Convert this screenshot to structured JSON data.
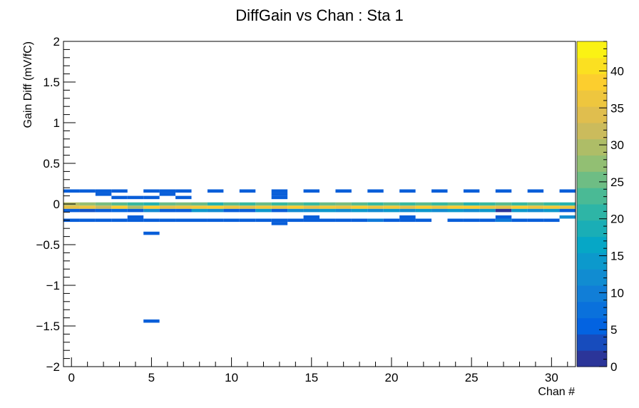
{
  "chart_data": {
    "type": "heatmap",
    "title": "DiffGain vs Chan : Sta 1",
    "xlabel": "Chan #",
    "ylabel": "Gain Diff (mV/fC)",
    "xlim": [
      -0.5,
      31.5
    ],
    "ylim": [
      -2,
      2
    ],
    "zlim": [
      0,
      44
    ],
    "x_tick_labels": [
      "0",
      "5",
      "10",
      "15",
      "20",
      "25",
      "30"
    ],
    "y_tick_labels": [
      "2",
      "1.5",
      "1",
      "0.5",
      "0",
      "−0.5",
      "−1",
      "−1.5",
      "−2"
    ],
    "colorbar_tick_labels": [
      "0",
      "5",
      "10",
      "15",
      "20",
      "25",
      "30",
      "35",
      "40"
    ],
    "bin_width_y": 0.04,
    "colormap": [
      "#352a87",
      "#0363e1",
      "#1485d4",
      "#06a7c6",
      "#38b99e",
      "#92bf73",
      "#d9ba56",
      "#fcce2e",
      "#f9fb0e"
    ],
    "cells": [
      {
        "ch": 0,
        "y": 0.16,
        "z": 5
      },
      {
        "ch": 0,
        "y": 0.0,
        "z": 30
      },
      {
        "ch": 0,
        "y": -0.04,
        "z": 35
      },
      {
        "ch": 0,
        "y": -0.08,
        "z": 5
      },
      {
        "ch": 0,
        "y": -0.2,
        "z": 5
      },
      {
        "ch": 1,
        "y": 0.16,
        "z": 5
      },
      {
        "ch": 1,
        "y": 0.0,
        "z": 28
      },
      {
        "ch": 1,
        "y": -0.04,
        "z": 36
      },
      {
        "ch": 1,
        "y": -0.08,
        "z": 4
      },
      {
        "ch": 1,
        "y": -0.2,
        "z": 5
      },
      {
        "ch": 2,
        "y": 0.12,
        "z": 5
      },
      {
        "ch": 2,
        "y": 0.16,
        "z": 5
      },
      {
        "ch": 2,
        "y": 0.0,
        "z": 26
      },
      {
        "ch": 2,
        "y": -0.04,
        "z": 32
      },
      {
        "ch": 2,
        "y": -0.08,
        "z": 5
      },
      {
        "ch": 2,
        "y": -0.2,
        "z": 5
      },
      {
        "ch": 3,
        "y": 0.08,
        "z": 5
      },
      {
        "ch": 3,
        "y": 0.16,
        "z": 5
      },
      {
        "ch": 3,
        "y": 0.0,
        "z": 24
      },
      {
        "ch": 3,
        "y": -0.04,
        "z": 38
      },
      {
        "ch": 3,
        "y": -0.08,
        "z": 6
      },
      {
        "ch": 3,
        "y": -0.2,
        "z": 5
      },
      {
        "ch": 4,
        "y": 0.08,
        "z": 5
      },
      {
        "ch": 4,
        "y": 0.0,
        "z": 22
      },
      {
        "ch": 4,
        "y": -0.04,
        "z": 30
      },
      {
        "ch": 4,
        "y": -0.08,
        "z": 5
      },
      {
        "ch": 4,
        "y": -0.16,
        "z": 5
      },
      {
        "ch": 4,
        "y": -0.2,
        "z": 5
      },
      {
        "ch": 5,
        "y": 0.08,
        "z": 5
      },
      {
        "ch": 5,
        "y": 0.16,
        "z": 5
      },
      {
        "ch": 5,
        "y": 0.0,
        "z": 20
      },
      {
        "ch": 5,
        "y": -0.04,
        "z": 38
      },
      {
        "ch": 5,
        "y": -0.08,
        "z": 12
      },
      {
        "ch": 5,
        "y": -0.2,
        "z": 5
      },
      {
        "ch": 5,
        "y": -0.36,
        "z": 5
      },
      {
        "ch": 5,
        "y": -1.44,
        "z": 5
      },
      {
        "ch": 6,
        "y": 0.12,
        "z": 5
      },
      {
        "ch": 6,
        "y": 0.16,
        "z": 5
      },
      {
        "ch": 6,
        "y": 0.0,
        "z": 25
      },
      {
        "ch": 6,
        "y": -0.04,
        "z": 35
      },
      {
        "ch": 6,
        "y": -0.08,
        "z": 5
      },
      {
        "ch": 6,
        "y": -0.2,
        "z": 5
      },
      {
        "ch": 7,
        "y": 0.08,
        "z": 5
      },
      {
        "ch": 7,
        "y": 0.16,
        "z": 5
      },
      {
        "ch": 7,
        "y": 0.0,
        "z": 26
      },
      {
        "ch": 7,
        "y": -0.04,
        "z": 36
      },
      {
        "ch": 7,
        "y": -0.08,
        "z": 5
      },
      {
        "ch": 7,
        "y": -0.2,
        "z": 5
      },
      {
        "ch": 8,
        "y": 0.0,
        "z": 25
      },
      {
        "ch": 8,
        "y": -0.04,
        "z": 37
      },
      {
        "ch": 8,
        "y": -0.08,
        "z": 14
      },
      {
        "ch": 8,
        "y": -0.2,
        "z": 5
      },
      {
        "ch": 9,
        "y": 0.16,
        "z": 5
      },
      {
        "ch": 9,
        "y": 0.0,
        "z": 20
      },
      {
        "ch": 9,
        "y": -0.04,
        "z": 38
      },
      {
        "ch": 9,
        "y": -0.08,
        "z": 12
      },
      {
        "ch": 9,
        "y": -0.2,
        "z": 5
      },
      {
        "ch": 10,
        "y": 0.0,
        "z": 24
      },
      {
        "ch": 10,
        "y": -0.04,
        "z": 36
      },
      {
        "ch": 10,
        "y": -0.08,
        "z": 5
      },
      {
        "ch": 10,
        "y": -0.2,
        "z": 5
      },
      {
        "ch": 11,
        "y": 0.16,
        "z": 5
      },
      {
        "ch": 11,
        "y": 0.0,
        "z": 22
      },
      {
        "ch": 11,
        "y": -0.04,
        "z": 35
      },
      {
        "ch": 11,
        "y": -0.08,
        "z": 5
      },
      {
        "ch": 11,
        "y": -0.2,
        "z": 5
      },
      {
        "ch": 12,
        "y": 0.0,
        "z": 25
      },
      {
        "ch": 12,
        "y": -0.04,
        "z": 37
      },
      {
        "ch": 12,
        "y": -0.08,
        "z": 14
      },
      {
        "ch": 12,
        "y": -0.2,
        "z": 5
      },
      {
        "ch": 13,
        "y": 0.08,
        "z": 5
      },
      {
        "ch": 13,
        "y": 0.12,
        "z": 5
      },
      {
        "ch": 13,
        "y": 0.16,
        "z": 5
      },
      {
        "ch": 13,
        "y": 0.0,
        "z": 22
      },
      {
        "ch": 13,
        "y": -0.04,
        "z": 36
      },
      {
        "ch": 13,
        "y": -0.08,
        "z": 5
      },
      {
        "ch": 13,
        "y": -0.2,
        "z": 5
      },
      {
        "ch": 13,
        "y": -0.24,
        "z": 5
      },
      {
        "ch": 14,
        "y": 0.0,
        "z": 24
      },
      {
        "ch": 14,
        "y": -0.04,
        "z": 38
      },
      {
        "ch": 14,
        "y": -0.08,
        "z": 12
      },
      {
        "ch": 14,
        "y": -0.2,
        "z": 5
      },
      {
        "ch": 15,
        "y": 0.16,
        "z": 5
      },
      {
        "ch": 15,
        "y": 0.0,
        "z": 22
      },
      {
        "ch": 15,
        "y": -0.04,
        "z": 35
      },
      {
        "ch": 15,
        "y": -0.08,
        "z": 12
      },
      {
        "ch": 15,
        "y": -0.16,
        "z": 5
      },
      {
        "ch": 15,
        "y": -0.2,
        "z": 5
      },
      {
        "ch": 16,
        "y": 0.0,
        "z": 25
      },
      {
        "ch": 16,
        "y": -0.04,
        "z": 37
      },
      {
        "ch": 16,
        "y": -0.08,
        "z": 14
      },
      {
        "ch": 16,
        "y": -0.2,
        "z": 5
      },
      {
        "ch": 17,
        "y": 0.16,
        "z": 5
      },
      {
        "ch": 17,
        "y": 0.0,
        "z": 26
      },
      {
        "ch": 17,
        "y": -0.04,
        "z": 36
      },
      {
        "ch": 17,
        "y": -0.08,
        "z": 12
      },
      {
        "ch": 17,
        "y": -0.2,
        "z": 5
      },
      {
        "ch": 18,
        "y": 0.0,
        "z": 24
      },
      {
        "ch": 18,
        "y": -0.04,
        "z": 38
      },
      {
        "ch": 18,
        "y": -0.08,
        "z": 14
      },
      {
        "ch": 18,
        "y": -0.2,
        "z": 5
      },
      {
        "ch": 19,
        "y": 0.16,
        "z": 5
      },
      {
        "ch": 19,
        "y": 0.0,
        "z": 22
      },
      {
        "ch": 19,
        "y": -0.04,
        "z": 36
      },
      {
        "ch": 19,
        "y": -0.08,
        "z": 12
      },
      {
        "ch": 19,
        "y": -0.2,
        "z": 9
      },
      {
        "ch": 20,
        "y": 0.0,
        "z": 24
      },
      {
        "ch": 20,
        "y": -0.04,
        "z": 37
      },
      {
        "ch": 20,
        "y": -0.08,
        "z": 14
      },
      {
        "ch": 20,
        "y": -0.2,
        "z": 5
      },
      {
        "ch": 21,
        "y": 0.16,
        "z": 5
      },
      {
        "ch": 21,
        "y": 0.0,
        "z": 22
      },
      {
        "ch": 21,
        "y": -0.04,
        "z": 35
      },
      {
        "ch": 21,
        "y": -0.08,
        "z": 12
      },
      {
        "ch": 21,
        "y": -0.16,
        "z": 5
      },
      {
        "ch": 21,
        "y": -0.2,
        "z": 5
      },
      {
        "ch": 22,
        "y": 0.0,
        "z": 24
      },
      {
        "ch": 22,
        "y": -0.04,
        "z": 38
      },
      {
        "ch": 22,
        "y": -0.08,
        "z": 14
      },
      {
        "ch": 22,
        "y": -0.2,
        "z": 5
      },
      {
        "ch": 23,
        "y": 0.16,
        "z": 5
      },
      {
        "ch": 23,
        "y": 0.0,
        "z": 22
      },
      {
        "ch": 23,
        "y": -0.04,
        "z": 36
      },
      {
        "ch": 23,
        "y": -0.08,
        "z": 12
      },
      {
        "ch": 24,
        "y": 0.0,
        "z": 24
      },
      {
        "ch": 24,
        "y": -0.04,
        "z": 38
      },
      {
        "ch": 24,
        "y": -0.08,
        "z": 14
      },
      {
        "ch": 24,
        "y": -0.2,
        "z": 5
      },
      {
        "ch": 25,
        "y": 0.16,
        "z": 5
      },
      {
        "ch": 25,
        "y": 0.0,
        "z": 20
      },
      {
        "ch": 25,
        "y": -0.04,
        "z": 38
      },
      {
        "ch": 25,
        "y": -0.08,
        "z": 12
      },
      {
        "ch": 25,
        "y": -0.2,
        "z": 5
      },
      {
        "ch": 26,
        "y": 0.0,
        "z": 22
      },
      {
        "ch": 26,
        "y": -0.04,
        "z": 36
      },
      {
        "ch": 26,
        "y": -0.08,
        "z": 14
      },
      {
        "ch": 26,
        "y": -0.2,
        "z": 5
      },
      {
        "ch": 27,
        "y": 0.16,
        "z": 5
      },
      {
        "ch": 27,
        "y": 0.0,
        "z": 24
      },
      {
        "ch": 27,
        "y": -0.04,
        "z": 35
      },
      {
        "ch": 27,
        "y": -0.08,
        "z": 1
      },
      {
        "ch": 27,
        "y": -0.16,
        "z": 5
      },
      {
        "ch": 27,
        "y": -0.2,
        "z": 9
      },
      {
        "ch": 28,
        "y": 0.0,
        "z": 22
      },
      {
        "ch": 28,
        "y": -0.04,
        "z": 38
      },
      {
        "ch": 28,
        "y": -0.08,
        "z": 14
      },
      {
        "ch": 28,
        "y": -0.2,
        "z": 5
      },
      {
        "ch": 29,
        "y": 0.16,
        "z": 5
      },
      {
        "ch": 29,
        "y": 0.0,
        "z": 24
      },
      {
        "ch": 29,
        "y": -0.04,
        "z": 36
      },
      {
        "ch": 29,
        "y": -0.08,
        "z": 12
      },
      {
        "ch": 29,
        "y": -0.2,
        "z": 5
      },
      {
        "ch": 30,
        "y": 0.0,
        "z": 22
      },
      {
        "ch": 30,
        "y": -0.04,
        "z": 37
      },
      {
        "ch": 30,
        "y": -0.08,
        "z": 14
      },
      {
        "ch": 30,
        "y": -0.2,
        "z": 5
      },
      {
        "ch": 31,
        "y": 0.16,
        "z": 5
      },
      {
        "ch": 31,
        "y": 0.0,
        "z": 20
      },
      {
        "ch": 31,
        "y": -0.04,
        "z": 36
      },
      {
        "ch": 31,
        "y": -0.08,
        "z": 5
      },
      {
        "ch": 31,
        "y": -0.16,
        "z": 12
      }
    ]
  }
}
